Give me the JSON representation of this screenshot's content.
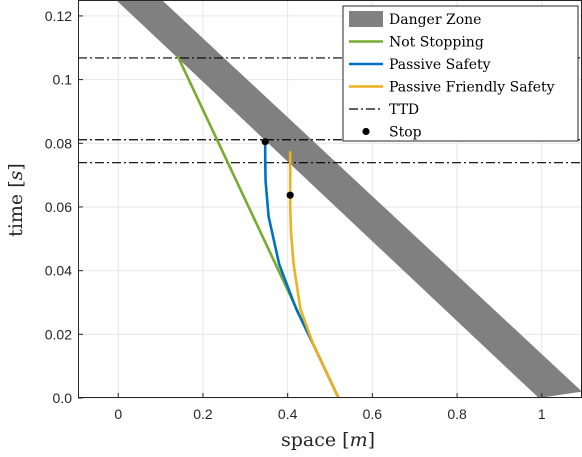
{
  "chart_data": {
    "type": "line",
    "xlabel": "space",
    "xlabel_unit": "m",
    "ylabel": "time",
    "ylabel_unit": "s",
    "xlim": [
      -0.095,
      1.095
    ],
    "ylim": [
      0,
      0.125
    ],
    "grid": true,
    "legend_position": "top-right",
    "xticks": [
      0,
      0.2,
      0.4,
      0.6,
      0.8,
      1
    ],
    "yticks": [
      0,
      0.02,
      0.04,
      0.06,
      0.08,
      0.1,
      0.12
    ],
    "xtick_labels": [
      "0",
      "0.2",
      "0.4",
      "0.6",
      "0.8",
      "1"
    ],
    "ytick_labels": [
      "0.0",
      "0.02",
      "0.04",
      "0.06",
      "0.08",
      "0.1",
      "0.12"
    ],
    "series": [
      {
        "name": "Danger Zone",
        "kind": "band",
        "color": "#808080",
        "left_edge": [
          [
            -0.005,
            0.125
          ],
          [
            0.993,
            0.0
          ]
        ],
        "right_edge": [
          [
            0.103,
            0.125
          ],
          [
            1.095,
            0.002
          ]
        ]
      },
      {
        "name": "Not Stopping",
        "kind": "line",
        "color": "#77ac30",
        "x": [
          0.52,
          0.14
        ],
        "y": [
          0.0,
          0.1075
        ]
      },
      {
        "name": "Passive Safety",
        "kind": "line",
        "color": "#0072bd",
        "x": [
          0.52,
          0.46,
          0.42,
          0.38,
          0.355,
          0.348,
          0.347,
          0.347
        ],
        "y": [
          0.0,
          0.017,
          0.028,
          0.042,
          0.057,
          0.068,
          0.075,
          0.0805
        ]
      },
      {
        "name": "Passive Friendly Safety",
        "kind": "line",
        "color": "#edb120",
        "x": [
          0.52,
          0.46,
          0.43,
          0.414,
          0.408,
          0.406,
          0.406,
          0.406
        ],
        "y": [
          0.0,
          0.017,
          0.028,
          0.042,
          0.052,
          0.06,
          0.069,
          0.0775
        ]
      },
      {
        "name": "TTD",
        "kind": "hlines",
        "color": "#000000",
        "y": [
          0.1068,
          0.0811,
          0.0739
        ]
      },
      {
        "name": "Stop",
        "kind": "points",
        "color": "#000000",
        "x": [
          0.347,
          0.406
        ],
        "y": [
          0.0805,
          0.0637
        ]
      }
    ]
  }
}
